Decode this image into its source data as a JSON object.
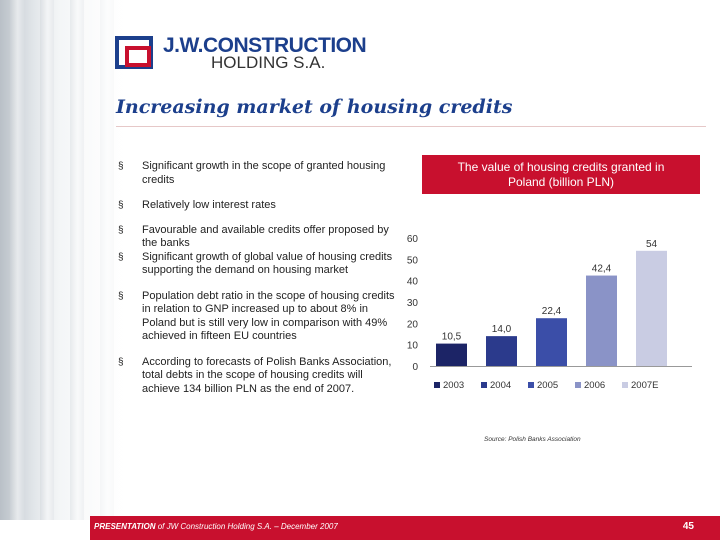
{
  "logo": {
    "line1": "J.W.CONSTRUCTION",
    "line2": "HOLDING S.A."
  },
  "title": "Increasing market of housing credits",
  "bullets": [
    {
      "marker": "§",
      "text": "Significant growth in the scope of granted housing credits"
    },
    {
      "marker": "§",
      "text": "Relatively low interest rates"
    },
    {
      "marker": "§",
      "text": "Favourable and available credits offer proposed by the banks"
    },
    {
      "marker": "§",
      "text": "Significant growth of global value of housing credits supporting the demand on housing market"
    },
    {
      "marker": "§",
      "text": "Population debt ratio in the scope of housing credits in relation to GNP increased up to about 8% in Poland but is still very low in comparison with 49% achieved in fifteen EU countries"
    },
    {
      "marker": "§",
      "text": "According to forecasts of Polish Banks Association, total debts in the scope of housing credits will achieve 134 billion PLN as the end of 2007."
    }
  ],
  "chart_header": {
    "line1": "The value of housing credits granted in",
    "line2": "Poland (billion PLN)"
  },
  "chart_data": {
    "type": "bar",
    "categories": [
      "2003",
      "2004",
      "2005",
      "2006",
      "2007E"
    ],
    "values": [
      10.5,
      14.0,
      22.4,
      42.4,
      54
    ],
    "value_labels": [
      "10,5",
      "14,0",
      "22,4",
      "42,4",
      "54"
    ],
    "yticks": [
      "0",
      "10",
      "20",
      "30",
      "40",
      "50",
      "60"
    ],
    "ylim": [
      0,
      60
    ],
    "colors": [
      "#1c2466",
      "#2b3a8c",
      "#3b4ea8",
      "#8a93c7",
      "#c9cce3"
    ],
    "legend_position": "bottom",
    "grid": false
  },
  "source": "Source: Polish Banks Association",
  "footer": {
    "prefix": "PRESENTATION",
    "text": " of JW Construction Holding S.A. – December 2007",
    "page": "45"
  }
}
